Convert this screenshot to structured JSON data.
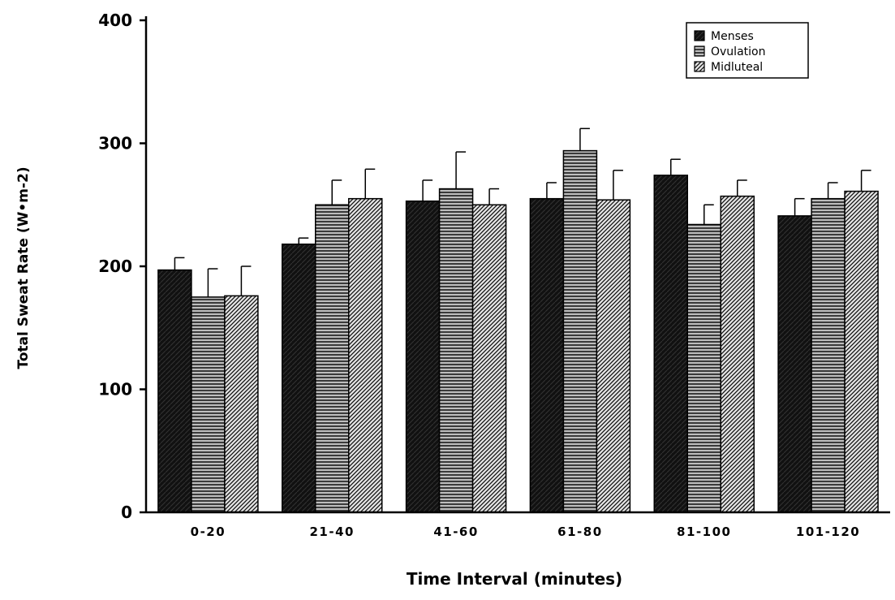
{
  "chart_data": {
    "type": "bar",
    "title": "",
    "xlabel": "Time Interval (minutes)",
    "ylabel": "Total Sweat Rate (W•m-2)",
    "ylim": [
      0,
      400
    ],
    "yticks": [
      "0",
      "100",
      "200",
      "300",
      "400"
    ],
    "categories": [
      "0-20",
      "21-40",
      "41-60",
      "61-80",
      "81-100",
      "101-120"
    ],
    "legend_position": "top-right",
    "grid": false,
    "series": [
      {
        "name": "Menses",
        "pattern": "solid-dark",
        "color": "#111111",
        "values": [
          197,
          218,
          253,
          255,
          274,
          241
        ],
        "errors": [
          10,
          5,
          17,
          13,
          13,
          14
        ]
      },
      {
        "name": "Ovulation",
        "pattern": "horizontal-lines",
        "color": "#555555",
        "values": [
          175,
          250,
          263,
          294,
          234,
          255
        ],
        "errors": [
          23,
          20,
          30,
          18,
          16,
          13
        ]
      },
      {
        "name": "Midluteal",
        "pattern": "diagonal-lines",
        "color": "#333333",
        "values": [
          176,
          255,
          250,
          254,
          257,
          261
        ],
        "errors": [
          24,
          24,
          13,
          24,
          13,
          17
        ]
      }
    ]
  }
}
